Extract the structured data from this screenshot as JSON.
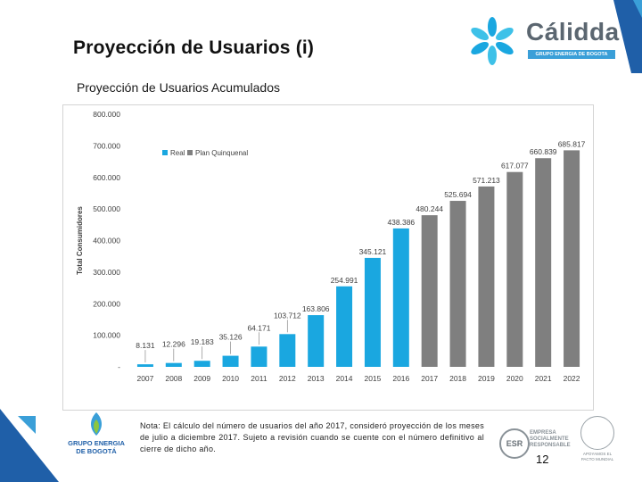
{
  "slide": {
    "title": "Proyección de Usuarios (i)",
    "subtitle": "Proyección de Usuarios Acumulados",
    "brand": "Cálidda",
    "brand_sub": "GRUPO ENERGIA DE BOGOTA",
    "footer_brand": "GRUPO ENERGIA DE BOGOTÁ",
    "note": "Nota: El cálculo del número de usuarios del año 2017, consideró proyección de los meses de julio a diciembre 2017. Sujeto a revisión cuando se cuente con el número definitivo al cierre de dicho año.",
    "esr_label": "ESR",
    "esr_text": "EMPRESA SOCIALMENTE RESPONSABLE",
    "gc_text": "APOYAMOS EL PACTO MUNDIAL",
    "page_number": "12"
  },
  "colors": {
    "real": "#1aa7e0",
    "plan": "#7f7f7f",
    "accent": "#2b8fd6",
    "corner": "#1f5fa8"
  },
  "chart_data": {
    "type": "bar",
    "ylabel": "Total Consumidores",
    "ylim": [
      0,
      800000
    ],
    "y_ticks": [
      0,
      100000,
      200000,
      300000,
      400000,
      500000,
      600000,
      700000,
      800000
    ],
    "y_tick_labels": [
      "-",
      "100.000",
      "200.000",
      "300.000",
      "400.000",
      "500.000",
      "600.000",
      "700.000",
      "800.000"
    ],
    "legend_position": "top-left",
    "categories": [
      "2007",
      "2008",
      "2009",
      "2010",
      "2011",
      "2012",
      "2013",
      "2014",
      "2015",
      "2016",
      "2017",
      "2018",
      "2019",
      "2020",
      "2021",
      "2022"
    ],
    "values": [
      8131,
      12296,
      19183,
      35126,
      64171,
      103712,
      163806,
      254991,
      345121,
      438386,
      480244,
      525694,
      571213,
      617077,
      660839,
      685817
    ],
    "value_labels": [
      "8.131",
      "12.296",
      "19.183",
      "35.126",
      "64.171",
      "103.712",
      "163.806",
      "254.991",
      "345.121",
      "438.386",
      "480.244",
      "525.694",
      "571.213",
      "617.077",
      "660.839",
      "685.817"
    ],
    "series_index": [
      0,
      0,
      0,
      0,
      0,
      0,
      0,
      0,
      0,
      0,
      1,
      1,
      1,
      1,
      1,
      1
    ],
    "series": [
      {
        "name": "Real"
      },
      {
        "name": "Plan Quinquenal"
      }
    ]
  }
}
